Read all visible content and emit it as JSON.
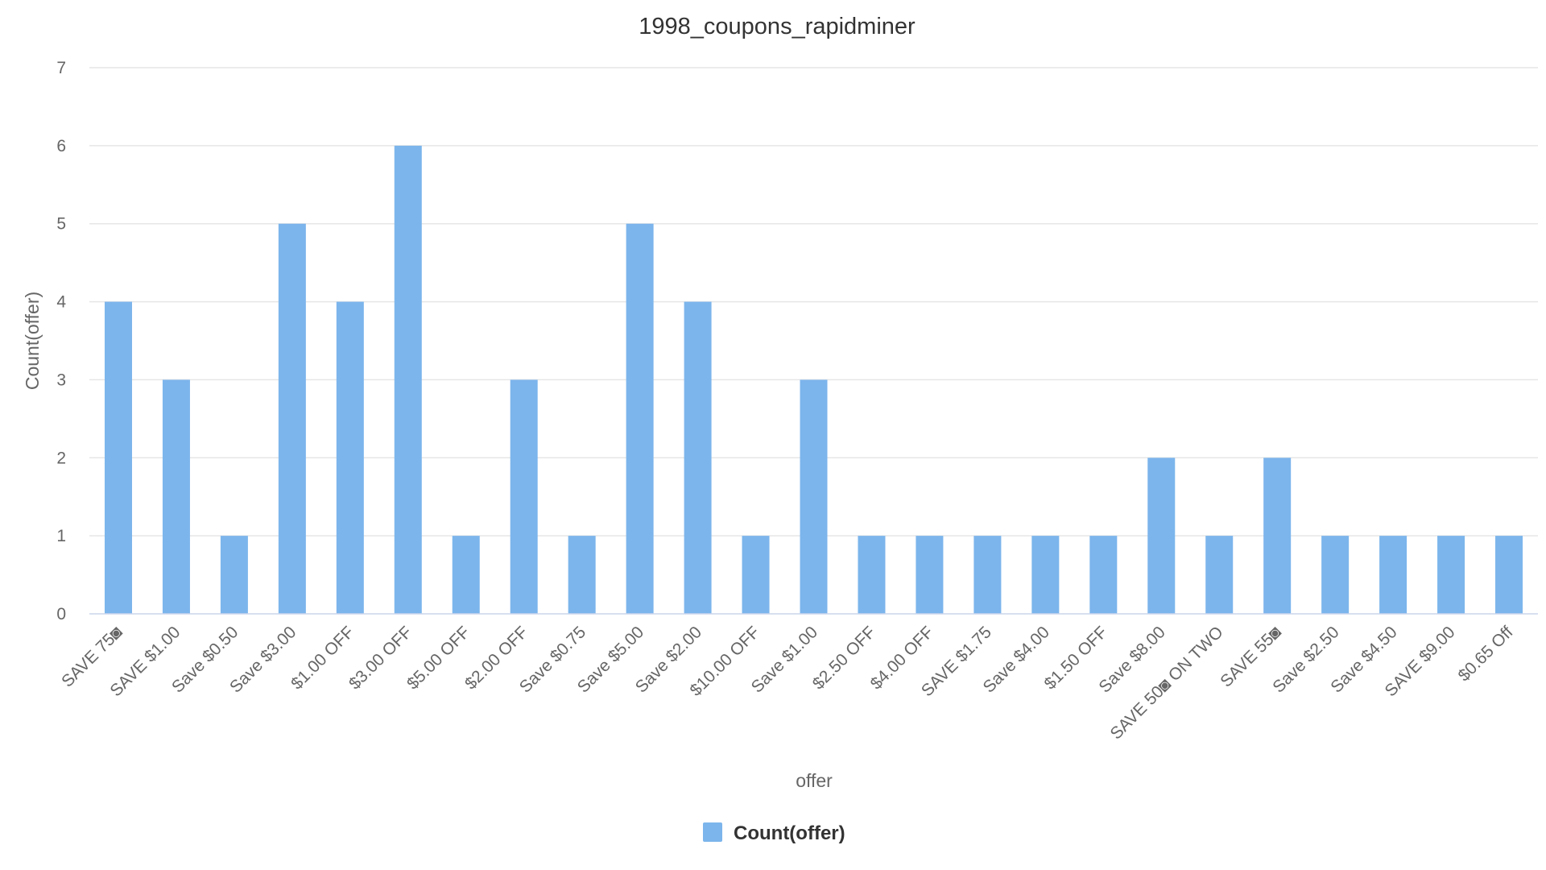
{
  "chart_data": {
    "type": "bar",
    "title": "1998_coupons_rapidminer",
    "xlabel": "offer",
    "ylabel": "Count(offer)",
    "ylim": [
      0,
      7
    ],
    "yticks": [
      0,
      1,
      2,
      3,
      4,
      5,
      6,
      7
    ],
    "grid": true,
    "legend_position": "bottom-center",
    "categories": [
      "SAVE 75◙",
      "SAVE $1.00",
      "Save $0.50",
      "Save $3.00",
      "$1.00 OFF",
      "$3.00 OFF",
      "$5.00 OFF",
      "$2.00 OFF",
      "Save $0.75",
      "Save $5.00",
      "Save $2.00",
      "$10.00 OFF",
      "Save $1.00",
      "$2.50 OFF",
      "$4.00 OFF",
      "SAVE $1.75",
      "Save $4.00",
      "$1.50 OFF",
      "Save $8.00",
      "SAVE 50◙ ON TWO",
      "SAVE 55◙",
      "Save $2.50",
      "Save $4.50",
      "SAVE $9.00",
      "$0.65 Off"
    ],
    "series": [
      {
        "name": "Count(offer)",
        "color": "#7cb5ec",
        "values": [
          4,
          3,
          1,
          5,
          4,
          6,
          1,
          3,
          1,
          5,
          4,
          1,
          3,
          1,
          1,
          1,
          1,
          1,
          2,
          1,
          2,
          1,
          1,
          1,
          1
        ]
      }
    ]
  }
}
